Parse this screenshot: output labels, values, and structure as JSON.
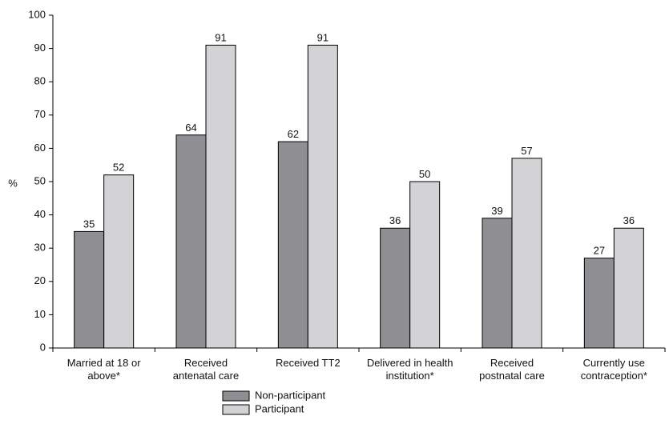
{
  "chart_data": {
    "type": "bar",
    "title": "",
    "xlabel": "",
    "ylabel": "%",
    "ylim": [
      0,
      100
    ],
    "yticks": [
      0,
      10,
      20,
      30,
      40,
      50,
      60,
      70,
      80,
      90,
      100
    ],
    "grid": false,
    "legend_position": "bottom-center",
    "categories": [
      [
        "Married at 18 or",
        "above*"
      ],
      [
        "Received",
        "antenatal care"
      ],
      [
        "Received TT2"
      ],
      [
        "Delivered in health",
        "institution*"
      ],
      [
        "Received",
        "postnatal care"
      ],
      [
        "Currently use",
        "contraception*"
      ]
    ],
    "series": [
      {
        "name": "Non-participant",
        "color": "#8f8f93",
        "values": [
          35,
          64,
          62,
          36,
          39,
          27
        ]
      },
      {
        "name": "Participant",
        "color": "#d3d3d5",
        "values": [
          52,
          91,
          91,
          50,
          57,
          36
        ]
      }
    ]
  }
}
